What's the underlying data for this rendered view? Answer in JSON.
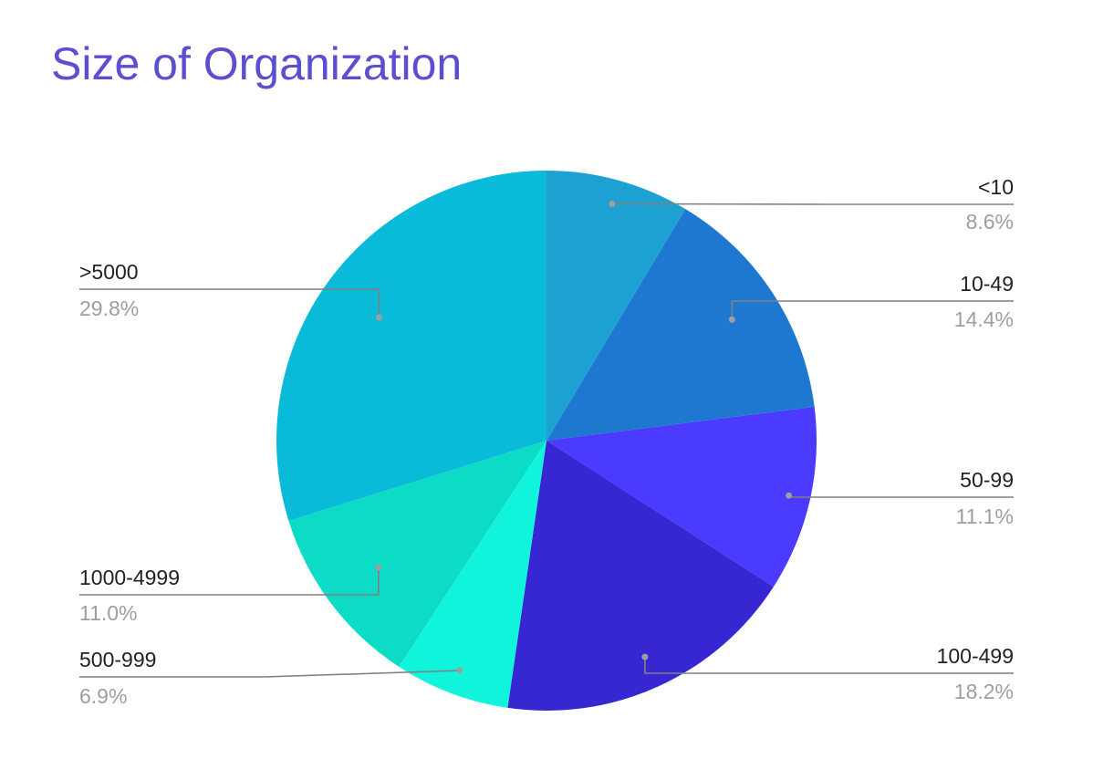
{
  "chart_data": {
    "type": "pie",
    "title": "Size of Organization",
    "categories": [
      "<10",
      "10-49",
      "50-99",
      "100-499",
      "500-999",
      "1000-4999",
      ">5000"
    ],
    "values": [
      8.6,
      14.4,
      11.1,
      18.2,
      6.9,
      11.0,
      29.8
    ],
    "value_labels": [
      "8.6%",
      "14.4%",
      "11.1%",
      "18.2%",
      "6.9%",
      "11.0%",
      "29.8%"
    ],
    "colors": [
      "#1da1d2",
      "#1e78d0",
      "#4b3aff",
      "#3627d3",
      "#10f4dc",
      "#0cdcc6",
      "#0abad9"
    ],
    "legend": "none",
    "label_style": "callout lines with category and percentage"
  }
}
